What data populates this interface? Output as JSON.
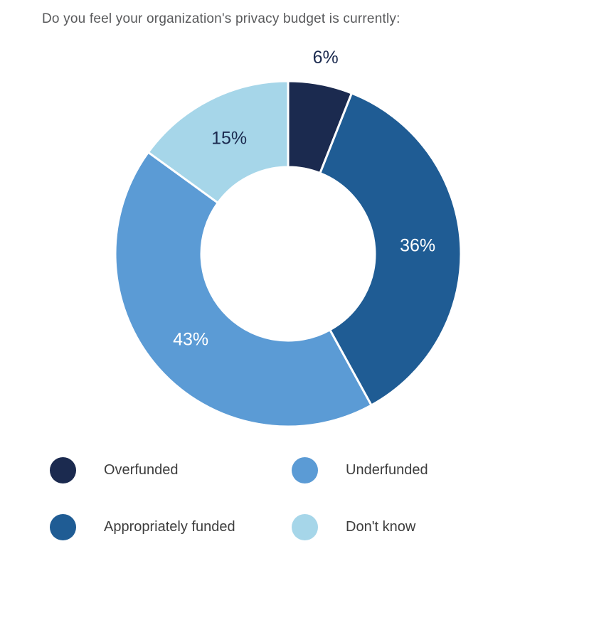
{
  "title": "Do you feel your organization's privacy budget is currently:",
  "chart_data": {
    "type": "pie",
    "subtype": "donut",
    "title": "Do you feel your organization's privacy budget is currently:",
    "start_angle_deg": 0,
    "direction": "clockwise",
    "legend_position": "bottom",
    "gap_color": "#ffffff",
    "segments": [
      {
        "label": "Overfunded",
        "value": 6,
        "color": "#1b2a4f",
        "label_text": "6%",
        "label_color": "#1b2a4f",
        "label_placement": "outside"
      },
      {
        "label": "Appropriately funded",
        "value": 36,
        "color": "#1f5c94",
        "label_text": "36%",
        "label_color": "#ffffff",
        "label_placement": "inside"
      },
      {
        "label": "Underfunded",
        "value": 43,
        "color": "#5b9bd5",
        "label_text": "43%",
        "label_color": "#ffffff",
        "label_placement": "inside"
      },
      {
        "label": "Don't know",
        "value": 15,
        "color": "#a6d6e9",
        "label_text": "15%",
        "label_color": "#1b2a4f",
        "label_placement": "inside"
      }
    ]
  }
}
